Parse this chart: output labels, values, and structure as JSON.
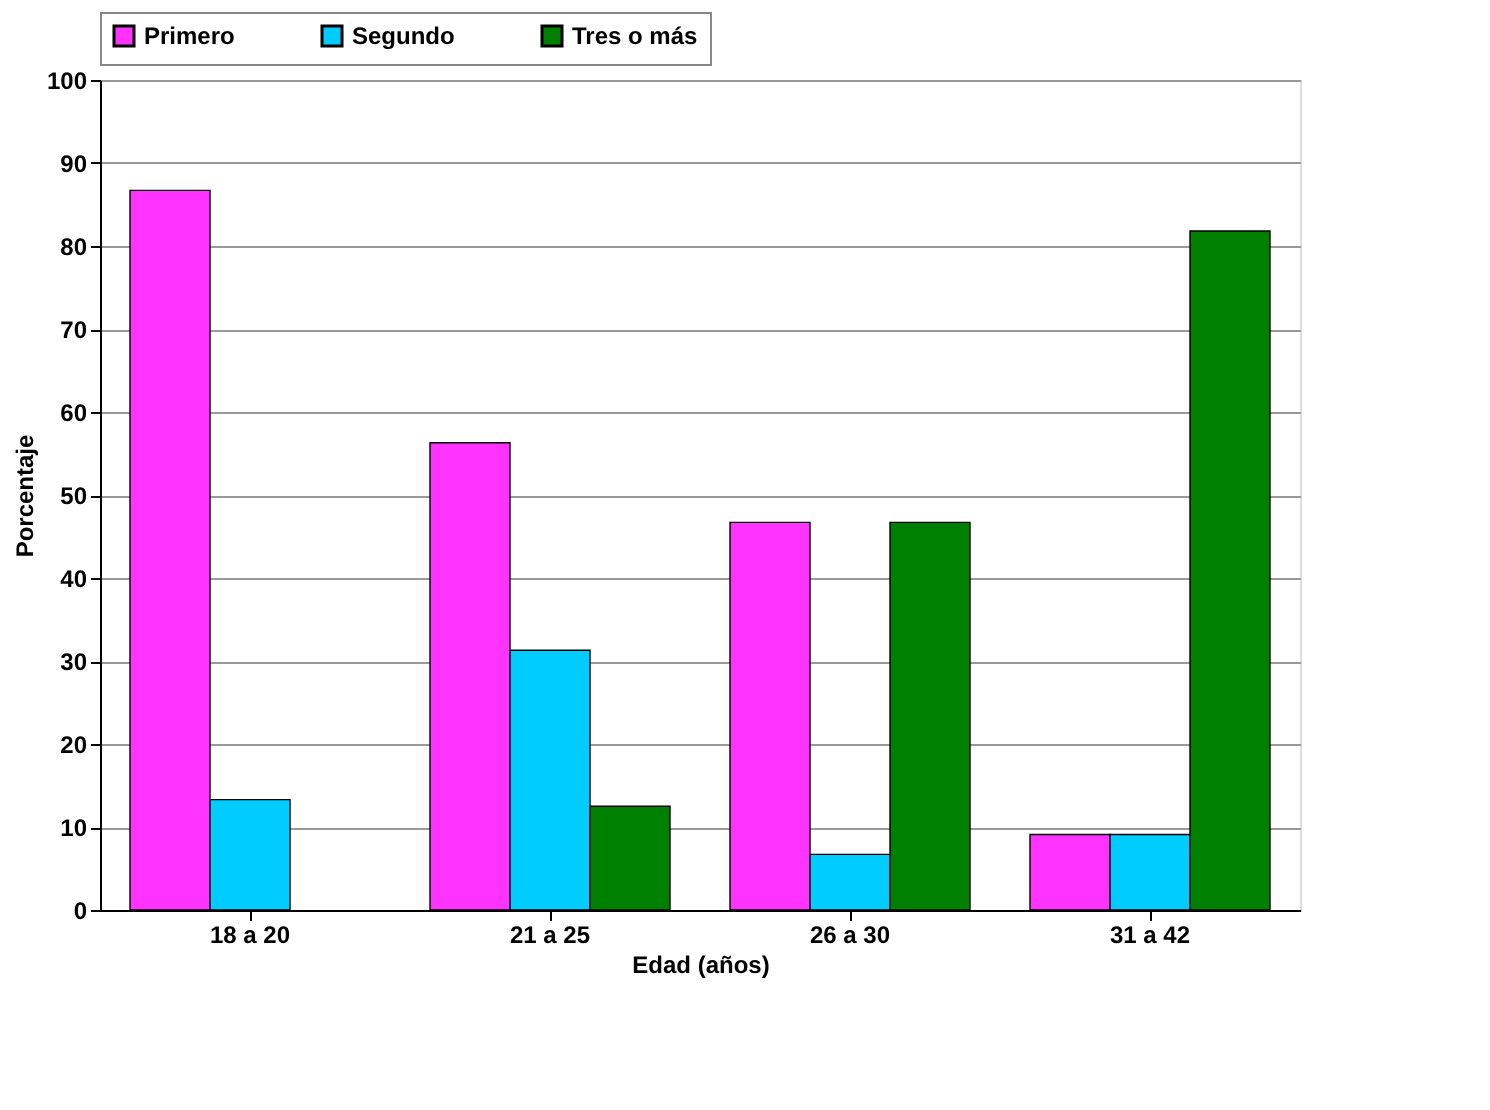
{
  "chart_data": {
    "type": "bar",
    "xlabel": "Edad (años)",
    "ylabel": "Porcentaje",
    "categories": [
      "18 a 20",
      "21 a 25",
      "26 a 30",
      "31 a 42"
    ],
    "series": [
      {
        "name": "Primero",
        "color": "#ff33ff",
        "values": [
          86.7,
          56.3,
          46.7,
          9.1
        ]
      },
      {
        "name": "Segundo",
        "color": "#00ccff",
        "values": [
          13.3,
          31.3,
          6.7,
          9.1
        ]
      },
      {
        "name": "Tres o más",
        "color": "#008000",
        "values": [
          null,
          12.5,
          46.7,
          81.8
        ]
      }
    ],
    "ylim": [
      0,
      100
    ],
    "yticks": [
      0,
      10,
      20,
      30,
      40,
      50,
      60,
      70,
      80,
      90,
      100
    ],
    "grid": "y",
    "legend": "top"
  }
}
